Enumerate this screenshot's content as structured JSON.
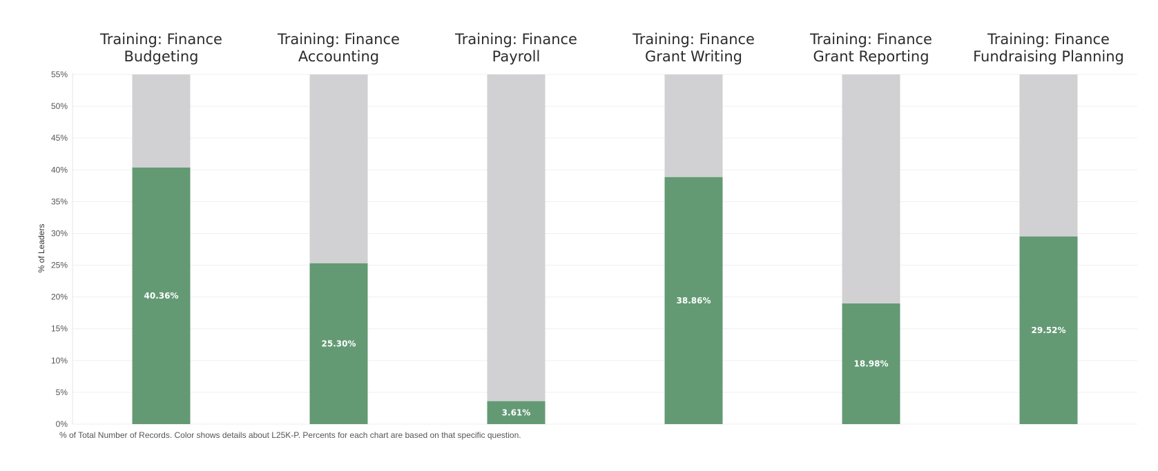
{
  "chart_data": {
    "type": "bar",
    "stacked": true,
    "ylabel": "% of Leaders",
    "ylim": [
      0,
      55
    ],
    "yticks": [
      0,
      5,
      10,
      15,
      20,
      25,
      30,
      35,
      40,
      45,
      50,
      55
    ],
    "ytick_labels": [
      "0%",
      "5%",
      "10%",
      "15%",
      "20%",
      "25%",
      "30%",
      "35%",
      "40%",
      "45%",
      "50%",
      "55%"
    ],
    "grid": true,
    "colors": {
      "highlight": "#639a74",
      "remainder": "#d1d1d3"
    },
    "panels": [
      {
        "title_lines": [
          "Training: Finance",
          "Budgeting"
        ],
        "value": 40.36,
        "label": "40.36%"
      },
      {
        "title_lines": [
          "Training: Finance",
          "Accounting"
        ],
        "value": 25.3,
        "label": "25.30%"
      },
      {
        "title_lines": [
          "Training: Finance",
          "Payroll"
        ],
        "value": 3.61,
        "label": "3.61%"
      },
      {
        "title_lines": [
          "Training: Finance",
          "Grant Writing"
        ],
        "value": 38.86,
        "label": "38.86%"
      },
      {
        "title_lines": [
          "Training: Finance",
          "Grant Reporting"
        ],
        "value": 18.98,
        "label": "18.98%"
      },
      {
        "title_lines": [
          "Training: Finance",
          "Fundraising Planning"
        ],
        "value": 29.52,
        "label": "29.52%"
      }
    ]
  },
  "footnote": "% of Total Number of Records.  Color shows details about L25K-P. Percents for each chart are based on that specific question."
}
